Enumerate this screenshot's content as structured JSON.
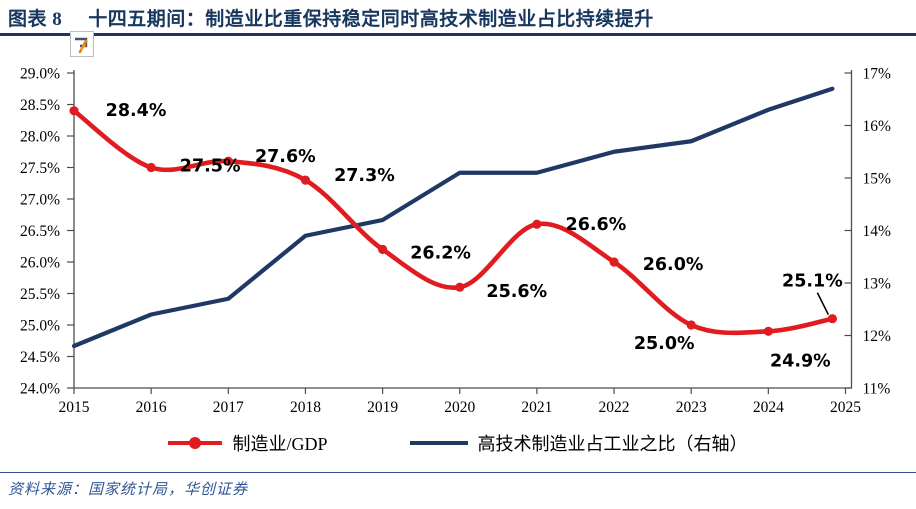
{
  "header": {
    "figure_label": "图表 8",
    "title": "十四五期间：制造业比重保持稳定同时高技术制造业占比持续提升",
    "accent_color": "#17375E"
  },
  "legend": {
    "items": [
      {
        "label": "制造业/GDP",
        "color": "#E01C20",
        "marker": "line-with-dot"
      },
      {
        "label": "高技术制造业占工业之比（右轴）",
        "color": "#1F3864",
        "marker": "line"
      }
    ]
  },
  "footer": {
    "source": "资料来源：国家统计局，华创证券"
  },
  "chart_data": {
    "type": "line",
    "title": "十四五期间：制造业比重保持稳定同时高技术制造业占比持续提升",
    "x_tick_labels": [
      "2015",
      "2016",
      "2017",
      "2018",
      "2019",
      "2020",
      "2021",
      "2022",
      "2023",
      "2024",
      "2025"
    ],
    "x_range": [
      2015,
      2025
    ],
    "grid": false,
    "legend_position": "bottom",
    "left_axis": {
      "min": 24.0,
      "max": 29.0,
      "step": 0.5,
      "tick_labels": [
        "29.0%",
        "28.5%",
        "28.0%",
        "27.5%",
        "27.0%",
        "26.5%",
        "26.0%",
        "25.5%",
        "25.0%",
        "24.5%",
        "24.0%"
      ],
      "tick_values": [
        29.0,
        28.5,
        28.0,
        27.5,
        27.0,
        26.5,
        26.0,
        25.5,
        25.0,
        24.5,
        24.0
      ]
    },
    "right_axis": {
      "min": 11,
      "max": 17,
      "step": 1,
      "tick_labels": [
        "17%",
        "16%",
        "15%",
        "14%",
        "13%",
        "12%",
        "11%"
      ],
      "tick_values": [
        17,
        16,
        15,
        14,
        13,
        12,
        11
      ]
    },
    "series": [
      {
        "name": "制造业/GDP",
        "axis": "left",
        "color": "#E01C20",
        "smooth": true,
        "marker": true,
        "x": [
          2015,
          2016,
          2017,
          2018,
          2019,
          2020,
          2021,
          2022,
          2023,
          2024,
          2024.83
        ],
        "values": [
          28.4,
          27.5,
          27.6,
          27.3,
          26.2,
          25.6,
          26.6,
          26.0,
          25.0,
          24.9,
          25.1
        ],
        "point_labels": [
          "28.4%",
          "27.5%",
          "27.6%",
          "27.3%",
          "26.2%",
          "25.6%",
          "26.6%",
          "26.0%",
          "25.0%",
          "24.9%",
          "25.1%"
        ]
      },
      {
        "name": "高技术制造业占工业之比（右轴）",
        "axis": "right",
        "color": "#1F3864",
        "smooth": false,
        "marker": false,
        "x": [
          2015,
          2016,
          2017,
          2018,
          2019,
          2020,
          2021,
          2022,
          2023,
          2024,
          2024.83
        ],
        "values": [
          11.8,
          12.4,
          12.7,
          13.9,
          14.2,
          15.1,
          15.1,
          15.5,
          15.7,
          16.3,
          16.7
        ]
      }
    ]
  }
}
